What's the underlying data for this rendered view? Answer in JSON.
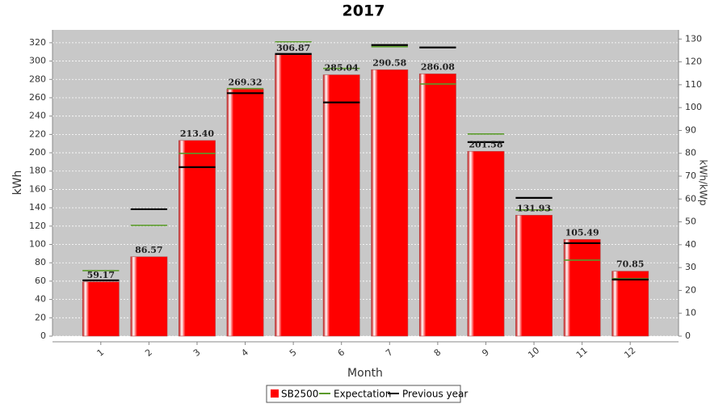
{
  "chart_data": {
    "type": "bar",
    "title": "2017",
    "x_label": "Month",
    "y_label": "kWh",
    "y2_label": "kWh/kWp",
    "categories": [
      "1",
      "2",
      "3",
      "4",
      "5",
      "6",
      "7",
      "8",
      "9",
      "10",
      "11",
      "12"
    ],
    "series": [
      {
        "name": "SB2500",
        "color": "#ff0000",
        "mark": "bar",
        "values": [
          59.17,
          86.57,
          213.4,
          269.32,
          306.87,
          285.04,
          290.58,
          286.08,
          201.58,
          131.93,
          105.49,
          70.85
        ],
        "value_labels": [
          "59.17",
          "86.57",
          "213.40",
          "269.32",
          "306.87",
          "285.04",
          "290.58",
          "286.08",
          "201.58",
          "131.93",
          "105.49",
          "70.85"
        ]
      },
      {
        "name": "Expectation",
        "color": "#5a9a2a",
        "mark": "dash",
        "values": [
          71.4,
          120.8,
          199.3,
          270,
          321,
          292,
          315.7,
          275,
          220.5,
          137.6,
          82.9,
          62.6
        ]
      },
      {
        "name": "Previous year",
        "color": "#000000",
        "mark": "dash",
        "values": [
          60.8,
          138.4,
          184.3,
          265,
          307.8,
          254.9,
          317.5,
          314.8,
          211.6,
          150.8,
          101.4,
          61.7
        ]
      }
    ],
    "ylim": [
      0,
      334
    ],
    "yticks": [
      0,
      20,
      40,
      60,
      80,
      100,
      120,
      140,
      160,
      180,
      200,
      220,
      240,
      260,
      280,
      300,
      320
    ],
    "y2lim": [
      0,
      134
    ],
    "y2ticks": [
      0,
      10,
      20,
      30,
      40,
      50,
      60,
      70,
      80,
      90,
      100,
      110,
      120,
      130
    ],
    "grid": true,
    "legend": "bottom"
  }
}
